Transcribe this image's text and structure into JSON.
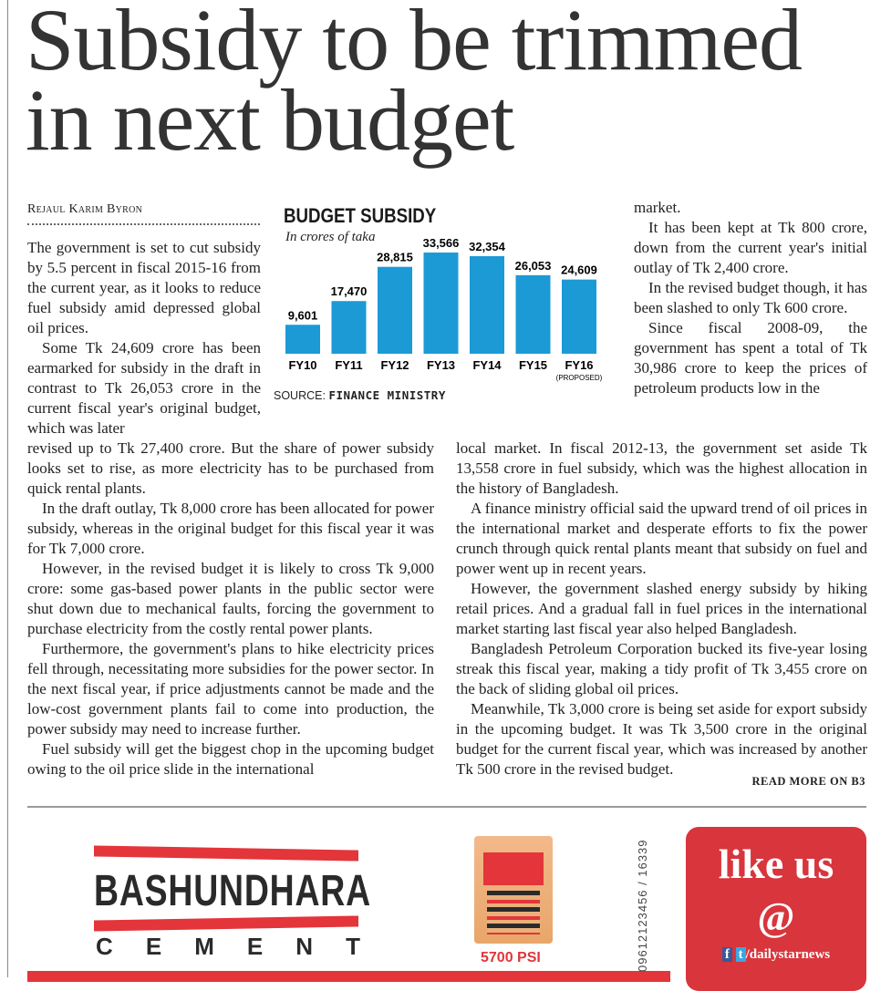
{
  "headline": {
    "line1": "Subsidy to be trimmed",
    "line2": "in next budget"
  },
  "byline": "Rejaul Karim Byron",
  "left_column": {
    "p1": "The government is set to cut subsidy by 5.5 percent in fiscal 2015-16 from the current year, as it looks to reduce fuel subsidy amid depressed global oil prices.",
    "p2a": "Some Tk 24,609 crore has been earmarked for subsidy in the draft in contrast to Tk 26,053 crore in the current fiscal year's original budget, which was later",
    "p2b": "revised up to Tk 27,400 crore. But the share of power subsidy looks set to rise, as more electricity has to be purchased from quick rental plants.",
    "p3": "In the draft outlay, Tk 8,000 crore has been allocated for power subsidy, whereas in the original budget for this fiscal year it was for Tk 7,000 crore.",
    "p4": "However, in the revised budget it is likely to cross Tk 9,000 crore: some gas-based power plants in the public sector were shut down due to mechanical faults, forcing the government to purchase electricity from the costly rental power plants.",
    "p5": "Furthermore, the government's plans to hike electricity prices fell through, necessitating more subsidies for the power sector. In the next fiscal year, if price adjustments cannot be made and the low-cost government plants fail to come into production, the power subsidy may need to increase further.",
    "p6": "Fuel subsidy will get the biggest chop in the upcoming budget owing to the oil price slide in the international"
  },
  "right_column": {
    "p0": "market.",
    "p1": "It has been kept at Tk 800 crore, down from the current year's initial outlay of Tk 2,400 crore.",
    "p2": "In the revised budget though, it has been slashed to only Tk 600 crore.",
    "p3a": "Since fiscal 2008-09, the government has spent a total of Tk 30,986 crore to keep the prices of petroleum products low in the",
    "p3b": "local market. In fiscal 2012-13, the government set aside Tk 13,558 crore in fuel subsidy, which was the highest allocation in the history of Bangladesh.",
    "p4": "A finance ministry official said the upward trend of oil prices in the international market and desperate efforts to fix the power crunch through quick rental plants meant that subsidy on fuel and power went up in recent years.",
    "p5": "However, the government slashed energy subsidy by hiking retail prices. And a gradual fall in fuel prices in the international market starting last fiscal year also helped Bangladesh.",
    "p6": "Bangladesh Petroleum Corporation bucked its five-year losing streak this fiscal year, making a tidy profit of Tk 3,455 crore on the back of sliding global oil prices.",
    "p7": "Meanwhile, Tk 3,000 crore is being set aside for export subsidy in the upcoming budget. It was Tk 3,500 crore in the original budget for the current fiscal year, which was increased by another Tk 500 crore in the revised budget.",
    "read_more": "READ MORE ON B3"
  },
  "chart_data": {
    "type": "bar",
    "title": "BUDGET SUBSIDY",
    "subtitle": "In crores of taka",
    "categories": [
      "FY10",
      "FY11",
      "FY12",
      "FY13",
      "FY14",
      "FY15",
      "FY16"
    ],
    "category_notes": [
      "",
      "",
      "",
      "",
      "",
      "",
      "(PROPOSED)"
    ],
    "values": [
      9601,
      17470,
      28815,
      33566,
      32354,
      26053,
      24609
    ],
    "value_labels": [
      "9,601",
      "17,470",
      "28,815",
      "33,566",
      "32,354",
      "26,053",
      "24,609"
    ],
    "source_label": "SOURCE:",
    "source": "FINANCE MINISTRY",
    "bar_color": "#1b9ad6",
    "grid": false,
    "legend": "none"
  },
  "ad": {
    "brand": "BASHUNDHARA",
    "cement_letters": [
      "C",
      "E",
      "M",
      "E",
      "N",
      "T"
    ],
    "psi": "5700 PSI",
    "phone": "09612123456 / 16339",
    "accent": "#e3353a"
  },
  "social": {
    "line1": "like us",
    "line2": "@",
    "handle": "/dailystarnews",
    "color": "#d8353c"
  }
}
